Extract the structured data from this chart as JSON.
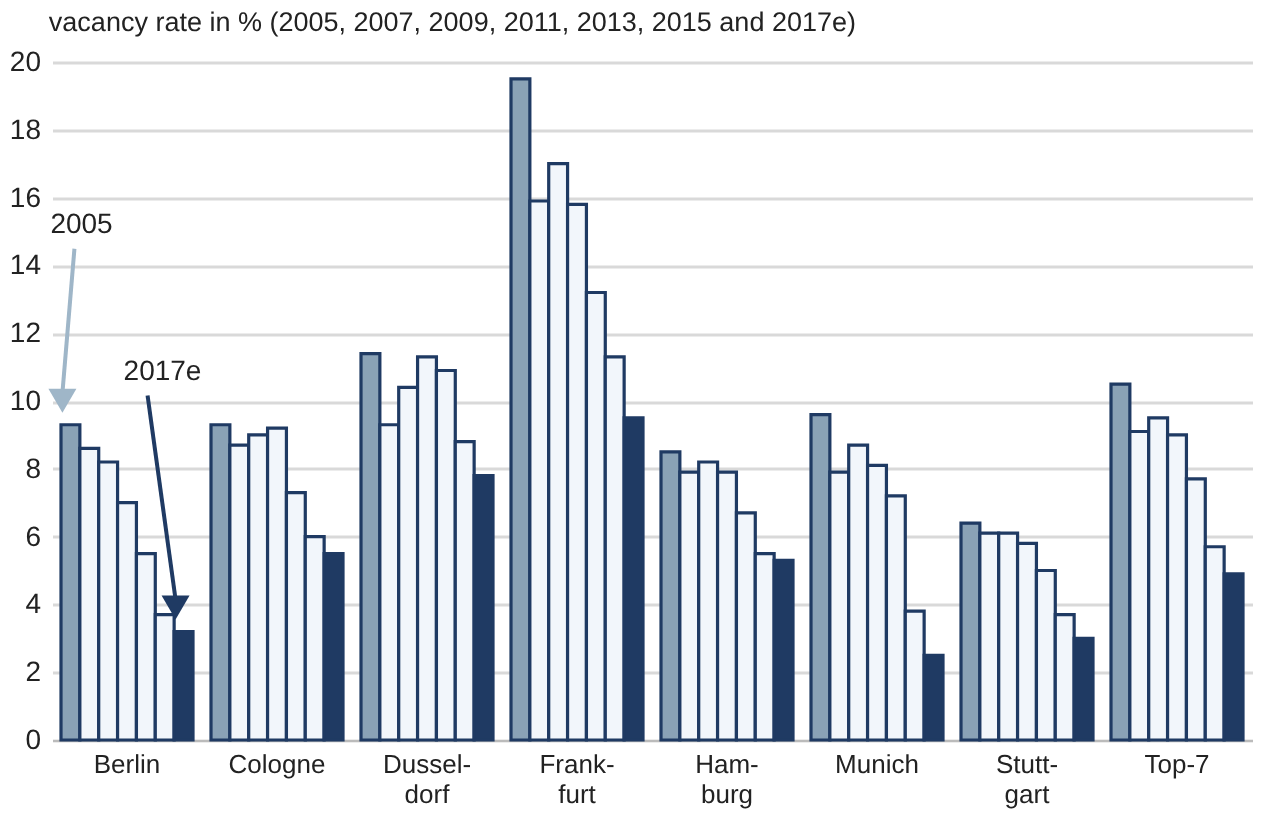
{
  "chart_data": {
    "type": "bar",
    "title": "vacancy rate in % (2005, 2007, 2009, 2011, 2013, 2015 and 2017e)",
    "categories": [
      "Berlin",
      "Cologne",
      "Dussel-\ndorf",
      "Frank-\nfurt",
      "Ham-\nburg",
      "Munich",
      "Stutt-\ngart",
      "Top-7"
    ],
    "series": [
      {
        "color": "#8aa2b6",
        "values": [
          9.3,
          9.3,
          11.4,
          19.5,
          8.5,
          9.6,
          6.4,
          10.5
        ]
      },
      {
        "color": "#f2f6fb",
        "values": [
          8.6,
          8.7,
          9.3,
          15.9,
          7.9,
          7.9,
          6.1,
          9.1
        ]
      },
      {
        "color": "#f2f6fb",
        "values": [
          8.2,
          9.0,
          10.4,
          17.0,
          8.2,
          8.7,
          6.1,
          9.5
        ]
      },
      {
        "color": "#f2f6fb",
        "values": [
          7.0,
          9.2,
          11.3,
          15.8,
          7.9,
          8.1,
          5.8,
          9.0
        ]
      },
      {
        "color": "#f2f6fb",
        "values": [
          5.5,
          7.3,
          10.9,
          13.2,
          6.7,
          7.2,
          5.0,
          7.7
        ]
      },
      {
        "color": "#f2f6fb",
        "values": [
          3.7,
          6.0,
          8.8,
          11.3,
          5.5,
          3.8,
          3.7,
          5.7
        ]
      },
      {
        "color": "#1f3a63",
        "values": [
          3.2,
          5.5,
          7.8,
          9.5,
          5.3,
          2.5,
          3.0,
          4.9
        ]
      }
    ],
    "annotations": [
      "2005",
      "2017e"
    ],
    "ylim": [
      0,
      20
    ],
    "yticks": [
      0,
      2,
      4,
      6,
      8,
      10,
      12,
      14,
      16,
      18,
      20
    ],
    "grid": "y",
    "legend": false
  }
}
